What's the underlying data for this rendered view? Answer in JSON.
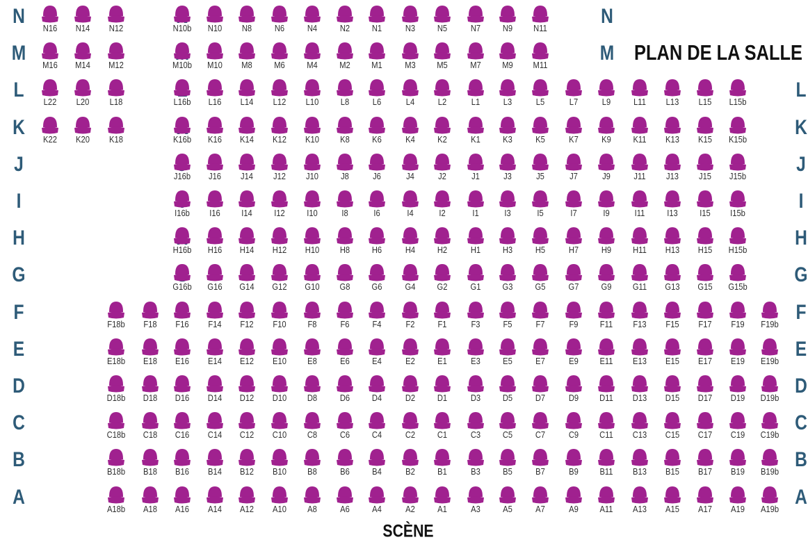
{
  "title": "PLAN DE LA SALLE",
  "stage": "SCÈNE",
  "colors": {
    "seat": "#a0218f",
    "row_letter": "#2e5b78",
    "label": "#2e2e2e"
  },
  "rows": [
    {
      "letter": "N",
      "seats": [
        "N16",
        "N14",
        "N12",
        "N10b",
        "N10",
        "N8",
        "N6",
        "N4",
        "N2",
        "N1",
        "N3",
        "N5",
        "N7",
        "N9",
        "N11"
      ]
    },
    {
      "letter": "M",
      "seats": [
        "M16",
        "M14",
        "M12",
        "M10b",
        "M10",
        "M8",
        "M6",
        "M4",
        "M2",
        "M1",
        "M3",
        "M5",
        "M7",
        "M9",
        "M11"
      ]
    },
    {
      "letter": "L",
      "seats": [
        "L22",
        "L20",
        "L18",
        "L16b",
        "L16",
        "L14",
        "L12",
        "L10",
        "L8",
        "L6",
        "L4",
        "L2",
        "L1",
        "L3",
        "L5",
        "L7",
        "L9",
        "L11",
        "L13",
        "L15",
        "L15b"
      ]
    },
    {
      "letter": "K",
      "seats": [
        "K22",
        "K20",
        "K18",
        "K16b",
        "K16",
        "K14",
        "K12",
        "K10",
        "K8",
        "K6",
        "K4",
        "K2",
        "K1",
        "K3",
        "K5",
        "K7",
        "K9",
        "K11",
        "K13",
        "K15",
        "K15b"
      ]
    },
    {
      "letter": "J",
      "seats": [
        "J16b",
        "J16",
        "J14",
        "J12",
        "J10",
        "J8",
        "J6",
        "J4",
        "J2",
        "J1",
        "J3",
        "J5",
        "J7",
        "J9",
        "J11",
        "J13",
        "J15",
        "J15b"
      ]
    },
    {
      "letter": "I",
      "seats": [
        "I16b",
        "I16",
        "I14",
        "I12",
        "I10",
        "I8",
        "I6",
        "I4",
        "I2",
        "I1",
        "I3",
        "I5",
        "I7",
        "I9",
        "I11",
        "I13",
        "I15",
        "I15b"
      ]
    },
    {
      "letter": "H",
      "seats": [
        "H16b",
        "H16",
        "H14",
        "H12",
        "H10",
        "H8",
        "H6",
        "H4",
        "H2",
        "H1",
        "H3",
        "H5",
        "H7",
        "H9",
        "H11",
        "H13",
        "H15",
        "H15b"
      ]
    },
    {
      "letter": "G",
      "seats": [
        "G16b",
        "G16",
        "G14",
        "G12",
        "G10",
        "G8",
        "G6",
        "G4",
        "G2",
        "G1",
        "G3",
        "G5",
        "G7",
        "G9",
        "G11",
        "G13",
        "G15",
        "G15b"
      ]
    },
    {
      "letter": "F",
      "seats": [
        "F18b",
        "F18",
        "F16",
        "F14",
        "F12",
        "F10",
        "F8",
        "F6",
        "F4",
        "F2",
        "F1",
        "F3",
        "F5",
        "F7",
        "F9",
        "F11",
        "F13",
        "F15",
        "F17",
        "F19",
        "F19b"
      ]
    },
    {
      "letter": "E",
      "seats": [
        "E18b",
        "E18",
        "E16",
        "E14",
        "E12",
        "E10",
        "E8",
        "E6",
        "E4",
        "E2",
        "E1",
        "E3",
        "E5",
        "E7",
        "E9",
        "E11",
        "E13",
        "E15",
        "E17",
        "E19",
        "E19b"
      ]
    },
    {
      "letter": "D",
      "seats": [
        "D18b",
        "D18",
        "D16",
        "D14",
        "D12",
        "D10",
        "D8",
        "D6",
        "D4",
        "D2",
        "D1",
        "D3",
        "D5",
        "D7",
        "D9",
        "D11",
        "D13",
        "D15",
        "D17",
        "D19",
        "D19b"
      ]
    },
    {
      "letter": "C",
      "seats": [
        "C18b",
        "C18",
        "C16",
        "C14",
        "C12",
        "C10",
        "C8",
        "C6",
        "C4",
        "C2",
        "C1",
        "C3",
        "C5",
        "C7",
        "C9",
        "C11",
        "C13",
        "C15",
        "C17",
        "C19",
        "C19b"
      ]
    },
    {
      "letter": "B",
      "seats": [
        "B18b",
        "B18",
        "B16",
        "B14",
        "B12",
        "B10",
        "B8",
        "B6",
        "B4",
        "B2",
        "B1",
        "B3",
        "B5",
        "B7",
        "B9",
        "B11",
        "B13",
        "B15",
        "B17",
        "B19",
        "B19b"
      ]
    },
    {
      "letter": "A",
      "seats": [
        "A18b",
        "A18",
        "A16",
        "A14",
        "A12",
        "A10",
        "A8",
        "A6",
        "A4",
        "A2",
        "A1",
        "A3",
        "A5",
        "A7",
        "A9",
        "A11",
        "A13",
        "A15",
        "A17",
        "A19",
        "A19b"
      ]
    }
  ]
}
